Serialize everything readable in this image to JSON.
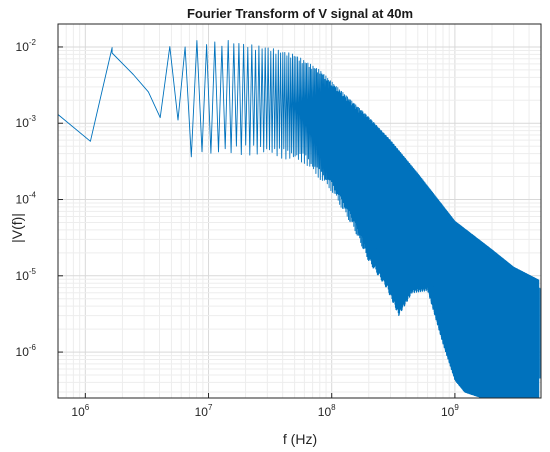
{
  "chart_data": {
    "type": "line",
    "title": "Fourier Transform of V signal at 40m",
    "xlabel": "f (Hz)",
    "ylabel": "|V(f)|",
    "xscale": "log",
    "yscale": "log",
    "xlim": [
      600000,
      5000000000
    ],
    "ylim": [
      2.5e-07,
      0.02
    ],
    "grid": "major and minor",
    "x_ticks": [
      {
        "base": "10",
        "exp": "6",
        "value": 1000000
      },
      {
        "base": "10",
        "exp": "7",
        "value": 10000000
      },
      {
        "base": "10",
        "exp": "8",
        "value": 100000000
      },
      {
        "base": "10",
        "exp": "9",
        "value": 1000000000
      }
    ],
    "y_ticks": [
      {
        "base": "10",
        "exp": "-2",
        "value": 0.01
      },
      {
        "base": "10",
        "exp": "-3",
        "value": 0.001
      },
      {
        "base": "10",
        "exp": "-4",
        "value": 0.0001
      },
      {
        "base": "10",
        "exp": "-5",
        "value": 1e-05
      },
      {
        "base": "10",
        "exp": "-6",
        "value": 1e-06
      }
    ],
    "series": [
      {
        "color": "#0072BD",
        "upper_envelope": [
          [
            600000,
            0.0013
          ],
          [
            1100000,
            0.00058
          ],
          [
            1650000,
            0.0098
          ],
          [
            2200000,
            0.0075
          ],
          [
            2700000,
            0.005
          ],
          [
            3200000,
            0.002
          ],
          [
            3500000,
            0.0088
          ],
          [
            4200000,
            0.009
          ],
          [
            5000000,
            0.0115
          ],
          [
            6000000,
            0.0102
          ],
          [
            7000000,
            0.0105
          ],
          [
            8300000,
            0.013
          ],
          [
            10000000,
            0.0115
          ],
          [
            12000000,
            0.0118
          ],
          [
            15000000,
            0.0123
          ],
          [
            20000000,
            0.011
          ],
          [
            30000000,
            0.01
          ],
          [
            50000000,
            0.008
          ],
          [
            80000000,
            0.005
          ],
          [
            100000000,
            0.0035
          ],
          [
            200000000,
            0.0012
          ],
          [
            300000000,
            0.0006
          ],
          [
            500000000,
            0.00022
          ],
          [
            1000000000,
            5.2e-05
          ],
          [
            2000000000,
            2.2e-05
          ],
          [
            3000000000,
            1.3e-05
          ],
          [
            5000000000,
            8.5e-06
          ]
        ],
        "lower_envelope": [
          [
            1650000,
            0.0098
          ],
          [
            3200000,
            0.002
          ],
          [
            4200000,
            0.0013
          ],
          [
            5500000,
            0.0011
          ],
          [
            7000000,
            0.0004
          ],
          [
            9000000,
            0.0004
          ],
          [
            15000000,
            0.00045
          ],
          [
            30000000,
            0.00045
          ],
          [
            60000000,
            0.00035
          ],
          [
            100000000,
            0.00015
          ],
          [
            150000000,
            5e-05
          ],
          [
            200000000,
            1.8e-05
          ],
          [
            280000000,
            8e-06
          ],
          [
            350000000,
            3.5e-06
          ],
          [
            450000000,
            7e-06
          ],
          [
            600000000,
            7.5e-06
          ],
          [
            800000000,
            1.5e-06
          ],
          [
            1000000000,
            5e-07
          ],
          [
            1200000000,
            3.5e-07
          ],
          [
            1600000000,
            3e-07
          ],
          [
            2000000000,
            2.8e-07
          ],
          [
            3000000000,
            2.6e-07
          ],
          [
            5000000000,
            2.5e-07
          ]
        ]
      }
    ]
  }
}
